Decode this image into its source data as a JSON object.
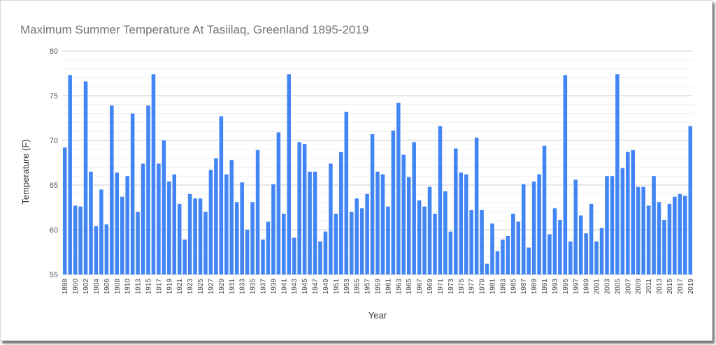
{
  "chart_data": {
    "type": "bar",
    "title": "Maximum Summer Temperature At Tasiilaq, Greenland  1895-2019",
    "xlabel": "Year",
    "ylabel": "Temperature (F)",
    "ylim": [
      55,
      80
    ],
    "yticks": [
      55,
      60,
      65,
      70,
      75,
      80
    ],
    "grid": true,
    "legend": "none",
    "bar_color": "#4285f4",
    "categories": [
      "1898",
      "1899",
      "1900",
      "1901",
      "1902",
      "1903",
      "1904",
      "1905",
      "1906",
      "1907",
      "1908",
      "1909",
      "1910",
      "1911",
      "1913",
      "1914",
      "1915",
      "1916",
      "1917",
      "1918",
      "1919",
      "1920",
      "1921",
      "1922",
      "1923",
      "1924",
      "1925",
      "1926",
      "1927",
      "1928",
      "1929",
      "1930",
      "1931",
      "1932",
      "1933",
      "1934",
      "1935",
      "1936",
      "1937",
      "1938",
      "1939",
      "1940",
      "1941",
      "1942",
      "1943",
      "1944",
      "1945",
      "1946",
      "1947",
      "1948",
      "1949",
      "1950",
      "1951",
      "1952",
      "1953",
      "1954",
      "1955",
      "1956",
      "1957",
      "1958",
      "1959",
      "1960",
      "1961",
      "1962",
      "1963",
      "1964",
      "1965",
      "1966",
      "1967",
      "1968",
      "1969",
      "1970",
      "1971",
      "1972",
      "1973",
      "1974",
      "1975",
      "1976",
      "1977",
      "1978",
      "1979",
      "1980",
      "1981",
      "1982",
      "1983",
      "1984",
      "1985",
      "1986",
      "1987",
      "1988",
      "1989",
      "1990",
      "1991",
      "1992",
      "1993",
      "1994",
      "1995",
      "1996",
      "1997",
      "1998",
      "1999",
      "2000",
      "2001",
      "2002",
      "2003",
      "2004",
      "2005",
      "2006",
      "2007",
      "2008",
      "2009",
      "2010",
      "2011",
      "2012",
      "2013",
      "2014",
      "2015",
      "2016",
      "2017",
      "2018",
      "2019"
    ],
    "tick_labels": [
      "1898",
      "1900",
      "1902",
      "1904",
      "1906",
      "1908",
      "1910",
      "1913",
      "1915",
      "1917",
      "1919",
      "1921",
      "1923",
      "1925",
      "1927",
      "1929",
      "1931",
      "1933",
      "1935",
      "1937",
      "1939",
      "1941",
      "1943",
      "1945",
      "1947",
      "1949",
      "1951",
      "1953",
      "1955",
      "1957",
      "1959",
      "1961",
      "1963",
      "1965",
      "1967",
      "1969",
      "1971",
      "1973",
      "1975",
      "1977",
      "1979",
      "1981",
      "1983",
      "1985",
      "1987",
      "1989",
      "1991",
      "1993",
      "1995",
      "1997",
      "1999",
      "2001",
      "2003",
      "2005",
      "2007",
      "2009",
      "2011",
      "2013",
      "2015",
      "2017",
      "2019"
    ],
    "values": [
      69.2,
      77.3,
      62.7,
      62.6,
      76.6,
      66.5,
      60.4,
      64.5,
      60.6,
      73.9,
      66.4,
      63.7,
      66.0,
      73.0,
      62.0,
      67.4,
      73.9,
      77.4,
      67.4,
      70.0,
      65.4,
      66.2,
      62.9,
      58.9,
      64.0,
      63.5,
      63.5,
      62.0,
      66.7,
      68.0,
      72.7,
      66.2,
      67.8,
      63.1,
      65.3,
      60.0,
      63.1,
      68.9,
      58.9,
      60.9,
      65.1,
      70.9,
      61.8,
      77.4,
      59.1,
      69.8,
      69.6,
      66.5,
      66.5,
      58.7,
      59.8,
      67.4,
      61.8,
      68.7,
      73.2,
      62.0,
      63.5,
      62.4,
      64.0,
      70.7,
      66.5,
      66.2,
      62.6,
      71.1,
      74.2,
      68.4,
      65.9,
      69.8,
      63.3,
      62.6,
      64.8,
      61.8,
      71.6,
      64.3,
      59.8,
      69.1,
      66.4,
      66.2,
      62.2,
      70.3,
      62.2,
      56.2,
      60.7,
      57.6,
      58.9,
      59.3,
      61.8,
      60.9,
      65.1,
      58.0,
      65.4,
      66.2,
      69.4,
      59.5,
      62.4,
      61.1,
      77.3,
      58.7,
      65.6,
      61.6,
      59.6,
      62.9,
      58.7,
      60.2,
      66.0,
      66.0,
      77.4,
      66.9,
      68.7,
      68.9,
      64.8,
      64.8,
      62.7,
      66.0,
      63.1,
      61.1,
      62.9,
      63.7,
      64.0,
      63.8,
      71.6
    ]
  }
}
